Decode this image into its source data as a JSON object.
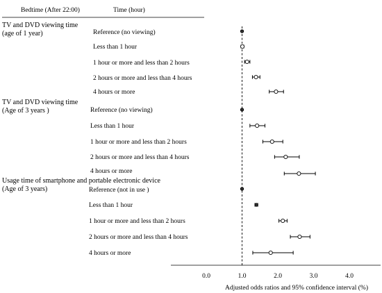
{
  "chart_data": {
    "type": "forest",
    "headers": {
      "col1": "Bedtime (After 22:00)",
      "col2": "Time (hour)"
    },
    "groups": [
      {
        "label": "TV and DVD viewing time",
        "sublabel": "(age of 1 year)",
        "rows": [
          {
            "label": "Reference (no viewing)",
            "or": 1.0,
            "lo": 1.0,
            "hi": 1.0,
            "marker": "filled"
          },
          {
            "label": "Less than 1 hour",
            "or": 1.01,
            "lo": 0.97,
            "hi": 1.05,
            "marker": "open"
          },
          {
            "label": "1 hour or more and less than 2 hours",
            "or": 1.14,
            "lo": 1.07,
            "hi": 1.22,
            "marker": "open"
          },
          {
            "label": "2 hours or more and less than 4 hours",
            "or": 1.39,
            "lo": 1.29,
            "hi": 1.5,
            "marker": "open"
          },
          {
            "label": "4 hours or more",
            "or": 1.95,
            "lo": 1.76,
            "hi": 2.16,
            "marker": "open"
          }
        ]
      },
      {
        "label": "TV and DVD viewing time",
        "sublabel": "(Age of 3 years )",
        "rows": [
          {
            "label": "Reference (no viewing)",
            "or": 1.0,
            "lo": 1.0,
            "hi": 1.0,
            "marker": "filled"
          },
          {
            "label": "Less than 1 hour",
            "or": 1.42,
            "lo": 1.22,
            "hi": 1.64,
            "marker": "open"
          },
          {
            "label": "1 hour or more and less than 2 hours",
            "or": 1.84,
            "lo": 1.58,
            "hi": 2.14,
            "marker": "open"
          },
          {
            "label": "2 hours or more and less than 4 hours",
            "or": 2.22,
            "lo": 1.91,
            "hi": 2.6,
            "marker": "open"
          },
          {
            "label": "4 hours or more",
            "or": 2.59,
            "lo": 2.18,
            "hi": 3.05,
            "marker": "open"
          }
        ]
      },
      {
        "label": "Usage time of smartphone and portable electronic device",
        "sublabel": "(Age of 3 years)",
        "rows": [
          {
            "label": "Reference (not in use )",
            "or": 1.0,
            "lo": 1.0,
            "hi": 1.0,
            "marker": "filled"
          },
          {
            "label": "Less than 1 hour",
            "or": 1.4,
            "lo": 1.36,
            "hi": 1.44,
            "marker": "filled"
          },
          {
            "label": "1 hour or more and less than 2 hours",
            "or": 2.14,
            "lo": 2.03,
            "hi": 2.26,
            "marker": "open"
          },
          {
            "label": "2 hours or more and less than 4 hours",
            "or": 2.61,
            "lo": 2.35,
            "hi": 2.9,
            "marker": "open"
          },
          {
            "label": "4 hours or more",
            "or": 1.8,
            "lo": 1.3,
            "hi": 2.43,
            "marker": "open"
          }
        ]
      }
    ],
    "xlim": [
      0.0,
      4.0
    ],
    "xticks": [
      "0.0",
      "1.0",
      "2.0",
      "3.0",
      "4.0"
    ],
    "reference_line": 1.0,
    "xlabel": "Adjusted  odds ratios and 95% confidence interval (%)"
  }
}
